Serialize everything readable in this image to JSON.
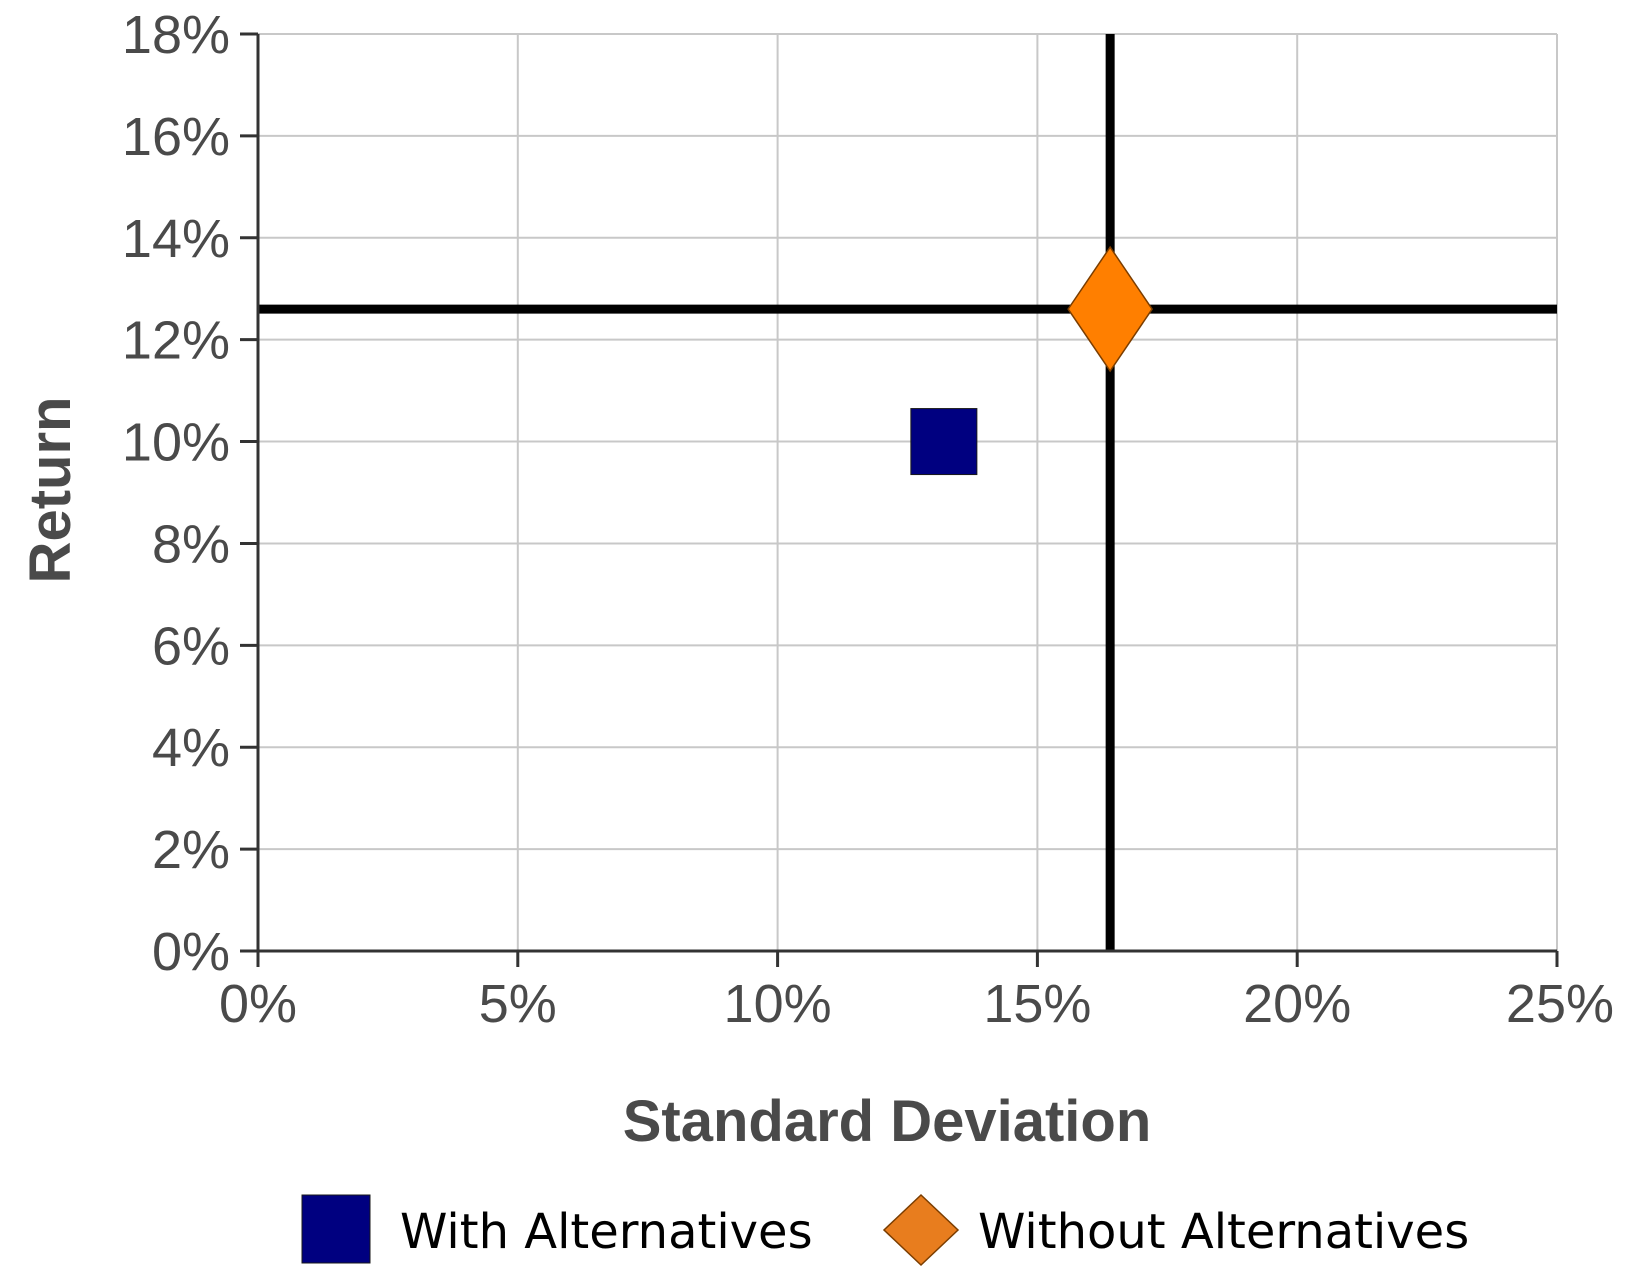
{
  "chart_data": {
    "type": "scatter",
    "title": "",
    "xlabel": "Standard Deviation",
    "ylabel": "Return",
    "xlim": [
      0,
      25
    ],
    "ylim": [
      0,
      18
    ],
    "x_ticks": [
      0,
      5,
      10,
      15,
      20,
      25
    ],
    "x_tick_labels": [
      "0%",
      "5%",
      "10%",
      "15%",
      "20%",
      "25%"
    ],
    "y_ticks": [
      0,
      2,
      4,
      6,
      8,
      10,
      12,
      14,
      16,
      18
    ],
    "y_tick_labels": [
      "0%",
      "2%",
      "4%",
      "6%",
      "8%",
      "10%",
      "12%",
      "14%",
      "16%",
      "18%"
    ],
    "grid": true,
    "legend_position": "bottom",
    "series": [
      {
        "name": "With Alternatives",
        "marker": "square",
        "color": "#000080",
        "points": [
          {
            "x": 13.2,
            "y": 10.0
          }
        ]
      },
      {
        "name": "Without Alternatives",
        "marker": "diamond",
        "color": "#ff7f00",
        "points": [
          {
            "x": 16.4,
            "y": 12.6
          }
        ]
      }
    ],
    "reference_lines": [
      {
        "orientation": "vertical",
        "x": 16.4,
        "color": "#000000"
      },
      {
        "orientation": "horizontal",
        "y": 12.6,
        "color": "#000000"
      }
    ]
  }
}
